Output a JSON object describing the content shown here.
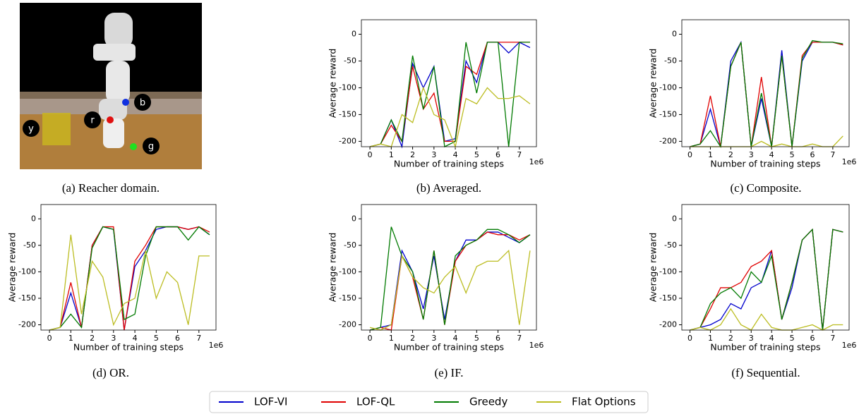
{
  "image": {
    "caption": "(a) Reacher domain.",
    "labels": [
      "y",
      "r",
      "b",
      "g"
    ]
  },
  "chart_data": [
    {
      "type": "line",
      "caption": "(b) Averaged.",
      "xlabel": "Number of training steps",
      "ylabel": "Average reward",
      "x_offset_label": "1e6",
      "x": [
        0,
        0.5,
        1,
        1.5,
        2,
        2.5,
        3,
        3.5,
        4,
        4.5,
        5,
        5.5,
        6,
        6.5,
        7,
        7.5
      ],
      "xlim": [
        -0.4,
        7.8
      ],
      "xticks": [
        0,
        1,
        2,
        3,
        4,
        5,
        6,
        7
      ],
      "ylim": [
        -210,
        27
      ],
      "yticks": [
        0,
        -50,
        -100,
        -150,
        -200
      ],
      "series": [
        {
          "name": "LOF-VI",
          "color": "#0000cc",
          "values": [
            -210,
            -205,
            -160,
            -210,
            -55,
            -100,
            -60,
            -200,
            -195,
            -50,
            -90,
            -15,
            -15,
            -35,
            -15,
            -25
          ]
        },
        {
          "name": "LOF-QL",
          "color": "#e00000",
          "values": [
            -210,
            -205,
            -170,
            -200,
            -60,
            -140,
            -110,
            -200,
            -200,
            -60,
            -75,
            -15,
            -15,
            -15,
            -15,
            -15
          ]
        },
        {
          "name": "Greedy",
          "color": "#007a00",
          "values": [
            -210,
            -205,
            -160,
            -200,
            -40,
            -140,
            -60,
            -210,
            -200,
            -15,
            -110,
            -15,
            -15,
            -210,
            -15,
            -15
          ]
        },
        {
          "name": "Flat Options",
          "color": "#bcbd22",
          "values": [
            -210,
            -205,
            -210,
            -150,
            -165,
            -100,
            -150,
            -160,
            -210,
            -120,
            -130,
            -100,
            -120,
            -120,
            -115,
            -130
          ]
        }
      ]
    },
    {
      "type": "line",
      "caption": "(c) Composite.",
      "xlabel": "Number of training steps",
      "ylabel": "Average reward",
      "x_offset_label": "1e6",
      "x": [
        0,
        0.5,
        1,
        1.5,
        2,
        2.5,
        3,
        3.5,
        4,
        4.5,
        5,
        5.5,
        6,
        6.5,
        7,
        7.5
      ],
      "xlim": [
        -0.4,
        7.8
      ],
      "xticks": [
        0,
        1,
        2,
        3,
        4,
        5,
        6,
        7
      ],
      "ylim": [
        -210,
        27
      ],
      "yticks": [
        0,
        -50,
        -100,
        -150,
        -200
      ],
      "series": [
        {
          "name": "LOF-VI",
          "color": "#0000cc",
          "values": [
            -210,
            -205,
            -140,
            -210,
            -50,
            -15,
            -210,
            -120,
            -210,
            -30,
            -210,
            -50,
            -15,
            -15,
            -15,
            -20
          ]
        },
        {
          "name": "LOF-QL",
          "color": "#e00000",
          "values": [
            -210,
            -205,
            -115,
            -210,
            -60,
            -15,
            -210,
            -80,
            -210,
            -40,
            -210,
            -40,
            -15,
            -15,
            -15,
            -20
          ]
        },
        {
          "name": "Greedy",
          "color": "#007a00",
          "values": [
            -210,
            -205,
            -180,
            -210,
            -60,
            -15,
            -210,
            -110,
            -210,
            -40,
            -210,
            -45,
            -12,
            -15,
            -15,
            -18
          ]
        },
        {
          "name": "Flat Options",
          "color": "#bcbd22",
          "values": [
            -210,
            -210,
            -210,
            -210,
            -210,
            -210,
            -210,
            -200,
            -210,
            -205,
            -210,
            -210,
            -205,
            -210,
            -210,
            -190
          ]
        }
      ]
    },
    {
      "type": "line",
      "caption": "(d) OR.",
      "xlabel": "Number of training steps",
      "ylabel": "Average reward",
      "x_offset_label": "1e6",
      "x": [
        0,
        0.5,
        1,
        1.5,
        2,
        2.5,
        3,
        3.5,
        4,
        4.5,
        5,
        5.5,
        6,
        6.5,
        7,
        7.5
      ],
      "xlim": [
        -0.4,
        7.8
      ],
      "xticks": [
        0,
        1,
        2,
        3,
        4,
        5,
        6,
        7
      ],
      "ylim": [
        -210,
        27
      ],
      "yticks": [
        0,
        -50,
        -100,
        -150,
        -200
      ],
      "series": [
        {
          "name": "LOF-VI",
          "color": "#0000cc",
          "values": [
            -210,
            -205,
            -140,
            -205,
            -50,
            -15,
            -20,
            -210,
            -90,
            -60,
            -20,
            -15,
            -15,
            -20,
            -15,
            -30
          ]
        },
        {
          "name": "LOF-QL",
          "color": "#e00000",
          "values": [
            -210,
            -205,
            -120,
            -205,
            -50,
            -15,
            -15,
            -210,
            -80,
            -50,
            -15,
            -15,
            -15,
            -20,
            -15,
            -25
          ]
        },
        {
          "name": "Greedy",
          "color": "#007a00",
          "values": [
            -210,
            -205,
            -180,
            -205,
            -55,
            -15,
            -20,
            -190,
            -180,
            -70,
            -15,
            -15,
            -15,
            -40,
            -15,
            -30
          ]
        },
        {
          "name": "Flat Options",
          "color": "#bcbd22",
          "values": [
            -210,
            -205,
            -30,
            -180,
            -80,
            -110,
            -200,
            -160,
            -150,
            -60,
            -150,
            -100,
            -120,
            -200,
            -70,
            -70
          ]
        }
      ]
    },
    {
      "type": "line",
      "caption": "(e) IF.",
      "xlabel": "Number of training steps",
      "ylabel": "Average reward",
      "x_offset_label": "1e6",
      "x": [
        0,
        0.5,
        1,
        1.5,
        2,
        2.5,
        3,
        3.5,
        4,
        4.5,
        5,
        5.5,
        6,
        6.5,
        7,
        7.5
      ],
      "xlim": [
        -0.4,
        7.8
      ],
      "xticks": [
        0,
        1,
        2,
        3,
        4,
        5,
        6,
        7
      ],
      "ylim": [
        -210,
        27
      ],
      "yticks": [
        0,
        -50,
        -100,
        -150,
        -200
      ],
      "series": [
        {
          "name": "LOF-VI",
          "color": "#0000cc",
          "values": [
            -210,
            -205,
            -200,
            -60,
            -100,
            -170,
            -70,
            -190,
            -80,
            -40,
            -40,
            -25,
            -25,
            -35,
            -45,
            -30
          ]
        },
        {
          "name": "LOF-QL",
          "color": "#e00000",
          "values": [
            -210,
            -205,
            -210,
            -70,
            -110,
            -190,
            -60,
            -200,
            -80,
            -50,
            -40,
            -25,
            -30,
            -30,
            -40,
            -30
          ]
        },
        {
          "name": "Greedy",
          "color": "#007a00",
          "values": [
            -210,
            -205,
            -15,
            -70,
            -100,
            -190,
            -60,
            -200,
            -70,
            -50,
            -40,
            -20,
            -20,
            -30,
            -45,
            -30
          ]
        },
        {
          "name": "Flat Options",
          "color": "#bcbd22",
          "values": [
            -205,
            -210,
            -200,
            -70,
            -110,
            -130,
            -140,
            -110,
            -90,
            -140,
            -90,
            -80,
            -80,
            -60,
            -200,
            -60
          ]
        }
      ]
    },
    {
      "type": "line",
      "caption": "(f) Sequential.",
      "xlabel": "Number of training steps",
      "ylabel": "Average reward",
      "x_offset_label": "1e6",
      "x": [
        0,
        0.5,
        1,
        1.5,
        2,
        2.5,
        3,
        3.5,
        4,
        4.5,
        5,
        5.5,
        6,
        6.5,
        7,
        7.5
      ],
      "xlim": [
        -0.4,
        7.8
      ],
      "xticks": [
        0,
        1,
        2,
        3,
        4,
        5,
        6,
        7
      ],
      "ylim": [
        -210,
        27
      ],
      "yticks": [
        0,
        -50,
        -100,
        -150,
        -200
      ],
      "series": [
        {
          "name": "LOF-VI",
          "color": "#0000cc",
          "values": [
            -210,
            -205,
            -200,
            -190,
            -160,
            -170,
            -130,
            -120,
            -60,
            -190,
            -130,
            -40,
            -20,
            -210,
            -20,
            -25
          ]
        },
        {
          "name": "LOF-QL",
          "color": "#e00000",
          "values": [
            -210,
            -205,
            -170,
            -130,
            -130,
            -120,
            -90,
            -80,
            -60,
            -190,
            -120,
            -40,
            -20,
            -210,
            -20,
            -25
          ]
        },
        {
          "name": "Greedy",
          "color": "#007a00",
          "values": [
            -210,
            -205,
            -160,
            -140,
            -130,
            -150,
            -100,
            -120,
            -70,
            -190,
            -120,
            -40,
            -20,
            -210,
            -20,
            -25
          ]
        },
        {
          "name": "Flat Options",
          "color": "#bcbd22",
          "values": [
            -210,
            -205,
            -210,
            -200,
            -170,
            -200,
            -210,
            -180,
            -205,
            -210,
            -210,
            -205,
            -200,
            -210,
            -200,
            -200
          ]
        }
      ]
    }
  ]
}
